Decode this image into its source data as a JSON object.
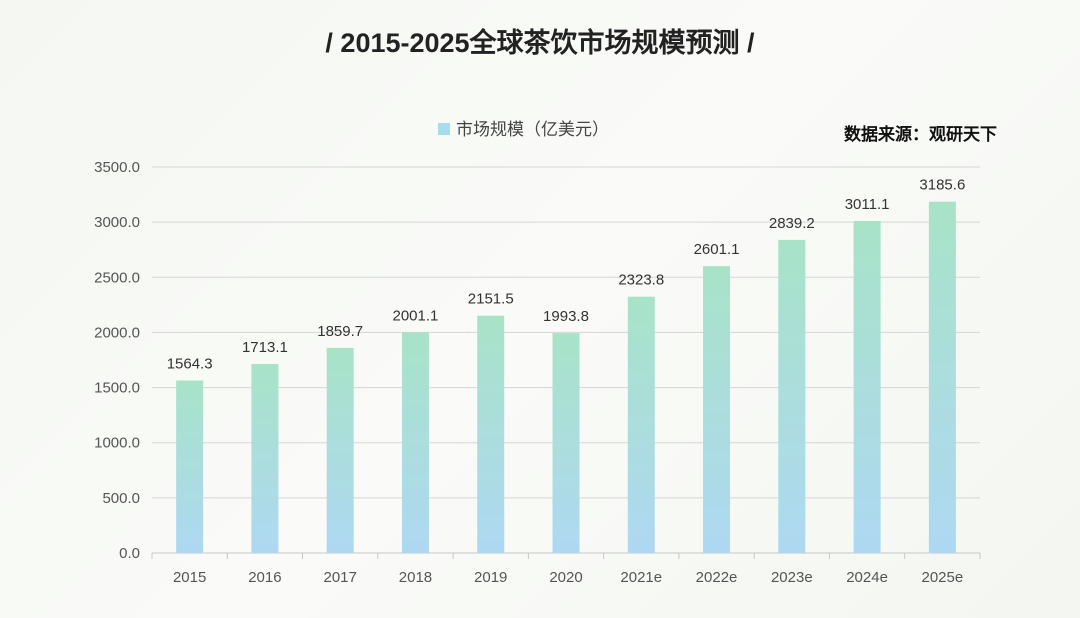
{
  "chart_data": {
    "type": "bar",
    "title": "/ 2015-2025全球茶饮市场规模预测 /",
    "source": "数据来源：观研天下",
    "categories": [
      "2015",
      "2016",
      "2017",
      "2018",
      "2019",
      "2020",
      "2021e",
      "2022e",
      "2023e",
      "2024e",
      "2025e"
    ],
    "series": [
      {
        "name": "市场规模（亿美元）",
        "values": [
          1564.3,
          1713.1,
          1859.7,
          2001.1,
          2151.5,
          1993.8,
          2323.8,
          2601.1,
          2839.2,
          3011.1,
          3185.6
        ]
      }
    ],
    "value_labels": [
      "1564.3",
      "1713.1",
      "1859.7",
      "2001.1",
      "2151.5",
      "1993.8",
      "2323.8",
      "2601.1",
      "2839.2",
      "3011.1",
      "3185.6"
    ],
    "yticks": [
      "0.0",
      "500.0",
      "1000.0",
      "1500.0",
      "2000.0",
      "2500.0",
      "3000.0",
      "3500.0"
    ],
    "ylim": [
      0,
      3500
    ],
    "grid": true,
    "legend_position": "top",
    "colors": {
      "bar_top": "#a8e3c8",
      "bar_bottom": "#aed8f2",
      "legend_swatch": "#a6dcec",
      "grid": "#d6d6d6"
    }
  }
}
